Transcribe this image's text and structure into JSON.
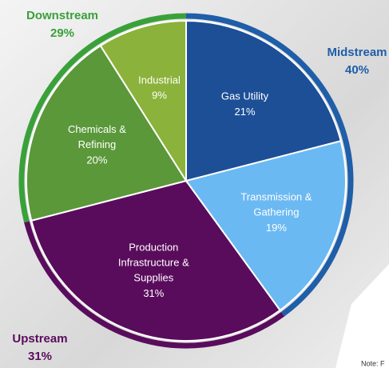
{
  "chart_data": [
    {
      "type": "pie",
      "categories": [
        "Gas Utility",
        "Transmission & Gathering",
        "Production Infrastructure & Supplies",
        "Chemicals & Refining",
        "Industrial"
      ],
      "values": [
        21,
        19,
        31,
        20,
        9
      ],
      "value_labels": [
        "21%",
        "19%",
        "31%",
        "20%",
        "9%"
      ],
      "colors": [
        "#1d4f97",
        "#6bb9f2",
        "#5a0c5c",
        "#5a983a",
        "#8bb23a"
      ]
    },
    {
      "type": "ring",
      "categories": [
        "Midstream",
        "Upstream",
        "Downstream"
      ],
      "values": [
        40,
        31,
        29
      ],
      "value_labels": [
        "40%",
        "31%",
        "29%"
      ],
      "colors": [
        "#1f5ea8",
        "#5a0c5c",
        "#3aa13a"
      ]
    }
  ],
  "note": "Note: F"
}
